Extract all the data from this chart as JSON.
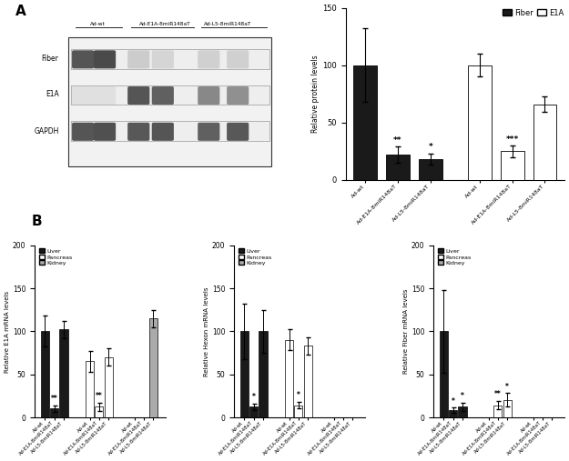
{
  "panel_A_fiber_vals": [
    100,
    22,
    18
  ],
  "panel_A_fiber_errs": [
    32,
    7,
    5
  ],
  "panel_A_fiber_sig": [
    "",
    "**",
    "*"
  ],
  "panel_A_e1a_vals": [
    100,
    25,
    66
  ],
  "panel_A_e1a_errs": [
    10,
    5,
    7
  ],
  "panel_A_e1a_sig": [
    "",
    "***",
    ""
  ],
  "panel_A_ylabel": "Relative protein levels",
  "panel_A_ylim": [
    0,
    150
  ],
  "panel_A_yticks": [
    0,
    50,
    100,
    150
  ],
  "panel_A_xtick_labels": [
    "Ad-wt",
    "Ad-E1A-8miR148aT",
    "Ad-L5-8miR148aT",
    "Ad-wt",
    "Ad-E1A-8miR148aT",
    "Ad-L5-8miR148aT"
  ],
  "wb_labels": [
    "Fiber",
    "E1A",
    "GAPDH"
  ],
  "wb_group_labels": [
    "Ad-wt",
    "Ad-E1A-8miR148aT",
    "Ad-L5-8miR148aT"
  ],
  "B1_ylabel": "Relative E1A mRNA levels",
  "B1_liver_vals": [
    100,
    10,
    102
  ],
  "B1_liver_errs": [
    18,
    4,
    10
  ],
  "B1_liver_sigs": [
    "",
    "**",
    ""
  ],
  "B1_pancreas_vals": [
    65,
    12,
    70
  ],
  "B1_pancreas_errs": [
    12,
    5,
    10
  ],
  "B1_pancreas_sigs": [
    "",
    "**",
    ""
  ],
  "B1_kidney_vals": [
    null,
    null,
    115
  ],
  "B1_kidney_errs": [
    null,
    null,
    10
  ],
  "B1_kidney_sigs": [
    "",
    "",
    ""
  ],
  "B2_ylabel": "Relative Hexon mRNA levels",
  "B2_liver_vals": [
    100,
    12,
    100
  ],
  "B2_liver_errs": [
    32,
    4,
    25
  ],
  "B2_liver_sigs": [
    "",
    "*",
    ""
  ],
  "B2_pancreas_vals": [
    90,
    14,
    83
  ],
  "B2_pancreas_errs": [
    12,
    4,
    10
  ],
  "B2_pancreas_sigs": [
    "",
    "*",
    ""
  ],
  "B2_kidney_vals": [
    null,
    null,
    null
  ],
  "B2_kidney_errs": [
    null,
    null,
    null
  ],
  "B2_kidney_sigs": [
    "",
    "",
    ""
  ],
  "B3_ylabel": "Relative Fiber mRNA levels",
  "B3_liver_vals": [
    100,
    8,
    12
  ],
  "B3_liver_errs": [
    48,
    3,
    5
  ],
  "B3_liver_sigs": [
    "",
    "*",
    "*"
  ],
  "B3_pancreas_vals": [
    null,
    14,
    20
  ],
  "B3_pancreas_errs": [
    null,
    5,
    8
  ],
  "B3_pancreas_sigs": [
    "",
    "**",
    "*"
  ],
  "B3_kidney_vals": [
    null,
    null,
    null
  ],
  "B3_kidney_errs": [
    null,
    null,
    null
  ],
  "B3_kidney_sigs": [
    "",
    "",
    ""
  ],
  "B_cats": [
    "Ad-wt",
    "Ad-E1A-8miR148aT",
    "Ad-L5-8miR148aT"
  ],
  "B_ylim": [
    0,
    200
  ],
  "B_yticks": [
    0,
    50,
    100,
    150,
    200
  ],
  "B_group_labels": [
    "Liver",
    "Pancreas",
    "Kidney"
  ],
  "color_liver": "#1a1a1a",
  "color_pancreas": "#ffffff",
  "color_kidney": "#aaaaaa"
}
